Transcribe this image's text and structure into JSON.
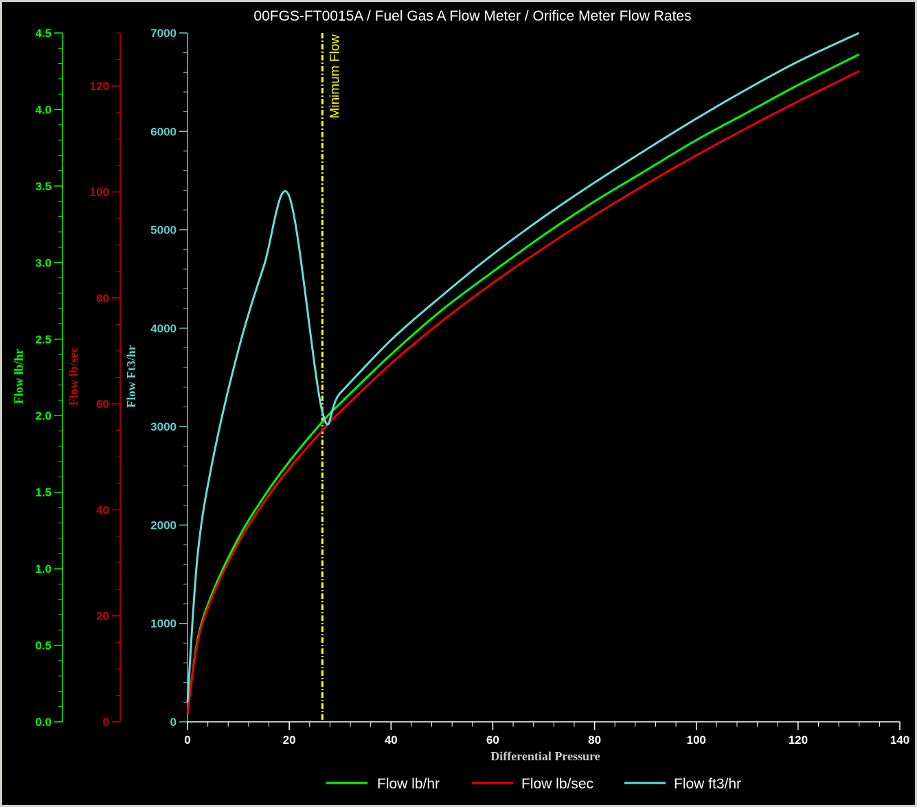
{
  "chart_data": {
    "type": "line",
    "title": "00FGS-FT0015A / Fuel Gas A Flow Meter / Orifice Meter Flow Rates",
    "xlabel": "Differential Pressure",
    "xlim": [
      0,
      140
    ],
    "x_ticks": [
      "0",
      "20",
      "40",
      "60",
      "80",
      "100",
      "120",
      "140"
    ],
    "axes": [
      {
        "label": "Flow lb/hr",
        "color": "#00ff00",
        "ylim": [
          0,
          4.5
        ],
        "ticks": [
          "0.0",
          "0.5",
          "1.0",
          "1.5",
          "2.0",
          "2.5",
          "3.0",
          "3.5",
          "4.0",
          "4.5"
        ]
      },
      {
        "label": "Flow lb/sec",
        "color": "#cc0000",
        "ylim": [
          0,
          130
        ],
        "ticks": [
          "0",
          "20",
          "40",
          "60",
          "80",
          "100",
          "120"
        ]
      },
      {
        "label": "Flow Ft3/hr",
        "color": "#66cccc",
        "ylim": [
          0,
          7000
        ],
        "ticks": [
          "0",
          "1000",
          "2000",
          "3000",
          "4000",
          "5000",
          "6000",
          "7000"
        ]
      }
    ],
    "series": [
      {
        "name": "Flow lb/hr",
        "color": "#00ff00",
        "axis": 0,
        "x": [
          0,
          2,
          5,
          10,
          15,
          20,
          26.5,
          30,
          40,
          50,
          60,
          70,
          80,
          90,
          100,
          110,
          120,
          132
        ],
        "y": [
          0.05,
          0.54,
          0.85,
          1.2,
          1.47,
          1.7,
          1.96,
          2.08,
          2.4,
          2.69,
          2.94,
          3.18,
          3.4,
          3.6,
          3.8,
          3.98,
          4.16,
          4.36
        ]
      },
      {
        "name": "Flow lb/sec",
        "color": "#ee0000",
        "axis": 1,
        "x": [
          0,
          2,
          5,
          10,
          15,
          20,
          26.5,
          30,
          40,
          50,
          60,
          70,
          80,
          90,
          100,
          110,
          120,
          132
        ],
        "y": [
          1.5,
          15.1,
          23.9,
          33.8,
          41.4,
          47.8,
          55.0,
          58.5,
          67.6,
          75.6,
          82.8,
          89.4,
          95.6,
          101.4,
          106.9,
          112.1,
          117.1,
          122.8
        ]
      },
      {
        "name": "Flow ft3/hr",
        "color": "#66dddd",
        "axis": 2,
        "x": [
          0,
          2,
          5,
          10,
          15,
          20,
          26.5,
          30,
          40,
          50,
          60,
          70,
          80,
          90,
          100,
          110,
          120,
          132
        ],
        "y": [
          200,
          1700,
          2670,
          3780,
          4630,
          5340,
          3150,
          3340,
          3880,
          4330,
          4750,
          5130,
          5480,
          5810,
          6130,
          6430,
          6710,
          7000
        ]
      }
    ],
    "annotations": [
      {
        "type": "vline",
        "x": 26.5,
        "label": "Minimum Flow",
        "color": "#ffff00"
      }
    ],
    "legend": {
      "placement": "bottom-center"
    },
    "grid": false
  }
}
